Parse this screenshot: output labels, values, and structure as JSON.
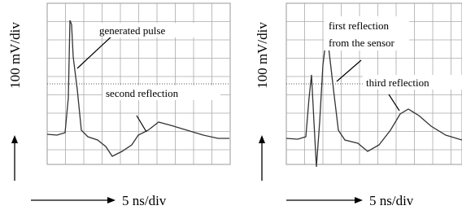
{
  "panels": [
    {
      "y_axis_label": "100 mV/div",
      "x_axis_label": "5 ns/div",
      "annotations": [
        "generated pulse",
        "second reflection"
      ]
    },
    {
      "y_axis_label": "100 mV/div",
      "x_axis_label": "5 ns/div",
      "annotations": [
        "first reflection",
        "from the sensor",
        "third reflection"
      ]
    }
  ]
}
